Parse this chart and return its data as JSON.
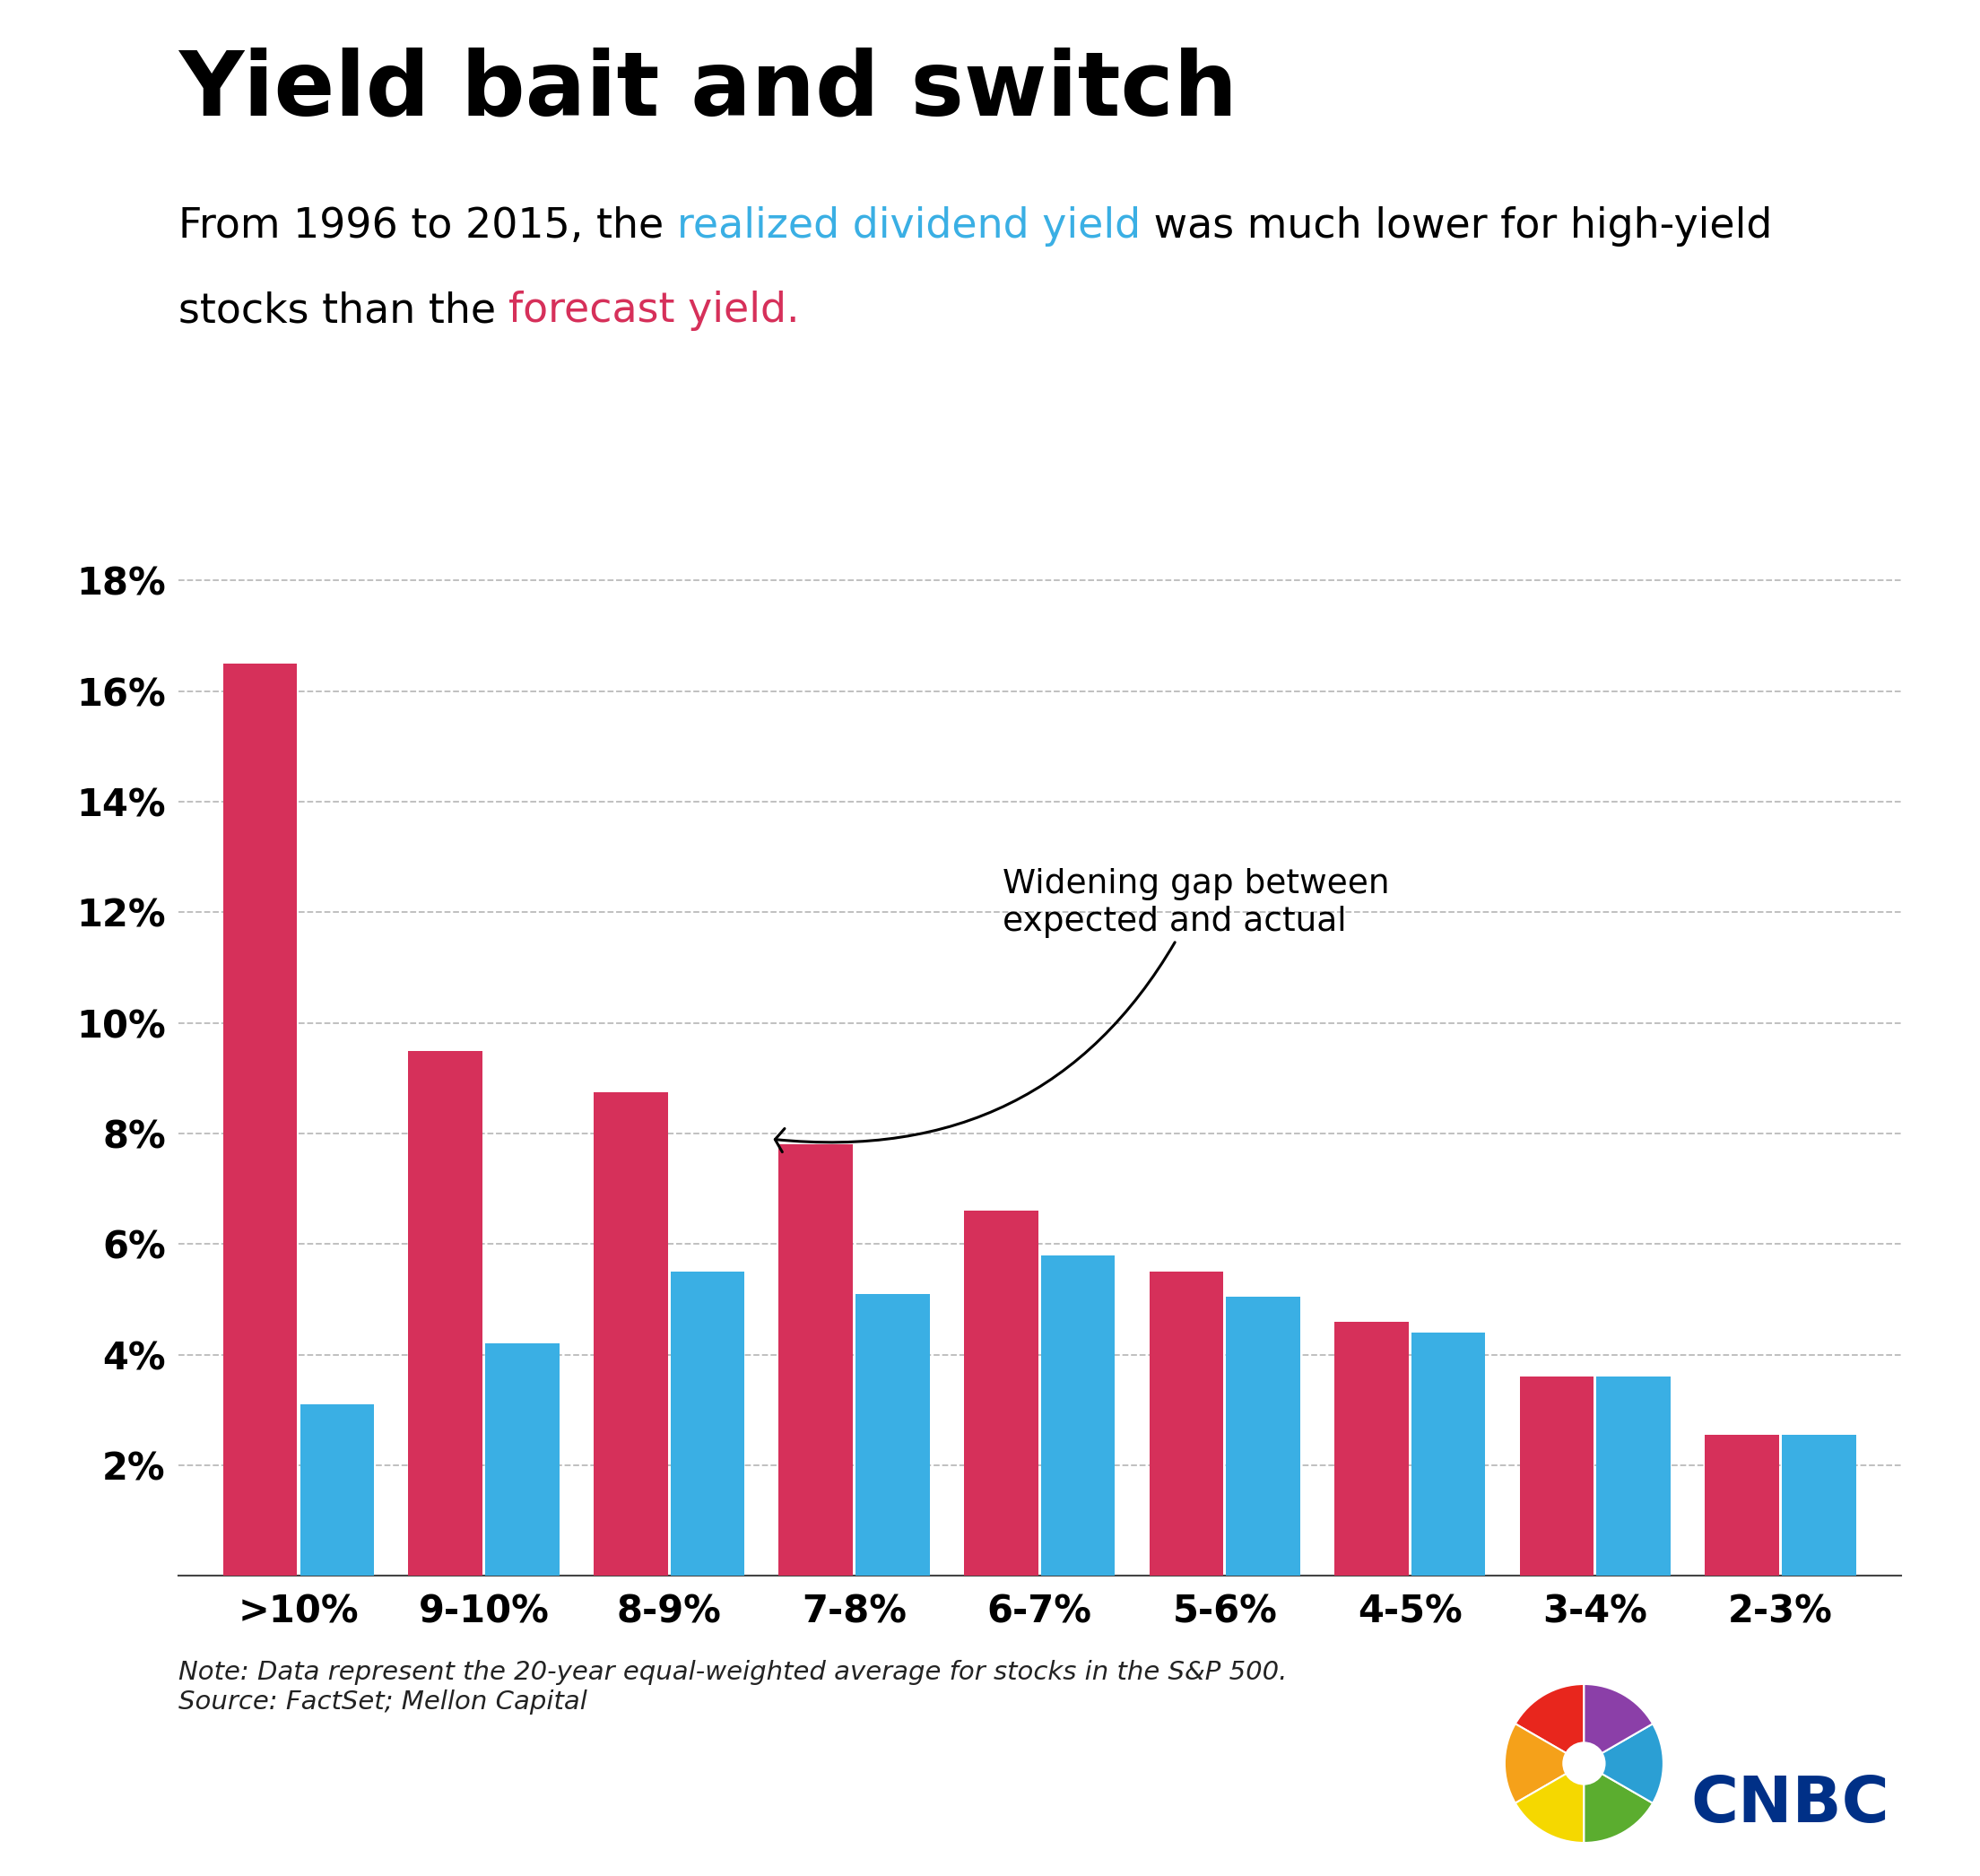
{
  "title": "Yield bait and switch",
  "categories": [
    ">10%",
    "9-10%",
    "8-9%",
    "7-8%",
    "6-7%",
    "5-6%",
    "4-5%",
    "3-4%",
    "2-3%"
  ],
  "forecast_values": [
    16.5,
    9.5,
    8.75,
    7.8,
    6.6,
    5.5,
    4.6,
    3.6,
    2.55
  ],
  "realized_values": [
    3.1,
    4.2,
    5.5,
    5.1,
    5.8,
    5.05,
    4.4,
    3.6,
    2.55
  ],
  "forecast_color": "#D6305A",
  "realized_color": "#3AAFE4",
  "ylim": [
    0,
    19
  ],
  "yticks": [
    2,
    4,
    6,
    8,
    10,
    12,
    14,
    16,
    18
  ],
  "annotation_text": "Widening gap between\nexpected and actual",
  "note_text": "Note: Data represent the 20-year equal-weighted average for stocks in the S&P 500.\nSource: FactSet; Mellon Capital",
  "background_color": "#FFFFFF",
  "grid_color": "#BBBBBB"
}
